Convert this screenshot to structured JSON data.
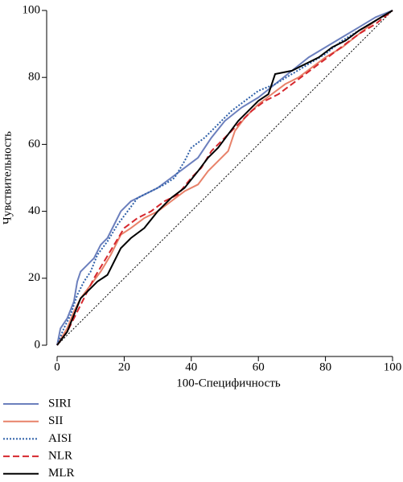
{
  "chart_data": {
    "type": "line",
    "x_label": "100-Специфичность",
    "y_label": "Чувствительность",
    "xlim": [
      0,
      100
    ],
    "ylim": [
      0,
      100
    ],
    "xticks": [
      0,
      20,
      40,
      60,
      80,
      100
    ],
    "yticks": [
      0,
      20,
      40,
      60,
      80,
      100
    ],
    "legend": "bottom-left",
    "series": [
      {
        "name": "SIRI",
        "color": "#6b7fbd",
        "style": "solid",
        "x": [
          0,
          1,
          3,
          5,
          6,
          7,
          9,
          11,
          13,
          15,
          17,
          19,
          22,
          26,
          30,
          34,
          38,
          42,
          46,
          50,
          55,
          60,
          65,
          70,
          75,
          80,
          85,
          90,
          95,
          100
        ],
        "values": [
          0,
          5,
          8,
          13,
          19,
          22,
          24,
          26,
          30,
          32,
          36,
          40,
          43,
          45,
          47,
          50,
          53,
          56,
          62,
          67,
          71,
          74,
          78,
          82,
          86,
          89,
          92,
          95,
          98,
          100
        ]
      },
      {
        "name": "SII",
        "color": "#e8826a",
        "style": "solid",
        "x": [
          0,
          3,
          5,
          7,
          10,
          13,
          16,
          19,
          22,
          26,
          30,
          34,
          38,
          42,
          45,
          48,
          51,
          53,
          56,
          60,
          64,
          68,
          72,
          76,
          80,
          85,
          90,
          95,
          100
        ],
        "values": [
          0,
          5,
          10,
          14,
          18,
          22,
          27,
          33,
          35,
          38,
          40,
          43,
          46,
          48,
          52,
          55,
          58,
          64,
          68,
          72,
          75,
          78,
          80,
          83,
          86,
          89,
          93,
          97,
          100
        ]
      },
      {
        "name": "AISI",
        "color": "#2d5fa8",
        "style": "dotted",
        "x": [
          0,
          2,
          4,
          6,
          8,
          10,
          12,
          15,
          18,
          21,
          24,
          28,
          32,
          35,
          38,
          40,
          44,
          48,
          52,
          56,
          60,
          65,
          70,
          75,
          80,
          85,
          90,
          95,
          100
        ],
        "values": [
          0,
          5,
          9,
          15,
          19,
          22,
          27,
          31,
          36,
          40,
          44,
          46,
          48,
          50,
          55,
          59,
          62,
          66,
          70,
          73,
          76,
          78,
          81,
          84,
          87,
          91,
          94,
          97,
          100
        ]
      },
      {
        "name": "NLR",
        "color": "#d6282e",
        "style": "dashed",
        "x": [
          0,
          3,
          5,
          8,
          11,
          14,
          17,
          20,
          24,
          28,
          32,
          36,
          40,
          43,
          46,
          50,
          54,
          58,
          62,
          66,
          70,
          74,
          78,
          82,
          86,
          90,
          95,
          100
        ],
        "values": [
          0,
          4,
          8,
          14,
          20,
          25,
          30,
          35,
          38,
          40,
          43,
          45,
          50,
          53,
          58,
          62,
          66,
          70,
          73,
          75,
          78,
          81,
          84,
          87,
          90,
          93,
          96,
          100
        ]
      },
      {
        "name": "MLR",
        "color": "#000000",
        "style": "solid",
        "x": [
          0,
          3,
          5,
          7,
          9,
          12,
          15,
          17,
          19,
          22,
          26,
          30,
          34,
          38,
          42,
          45,
          48,
          51,
          54,
          57,
          60,
          63,
          65,
          70,
          74,
          78,
          82,
          86,
          90,
          95,
          100
        ],
        "values": [
          0,
          4,
          9,
          14,
          16,
          19,
          21,
          25,
          29,
          32,
          35,
          40,
          44,
          47,
          52,
          56,
          59,
          63,
          67,
          70,
          73,
          75,
          81,
          82,
          84,
          86,
          89,
          91,
          94,
          97,
          100
        ]
      }
    ]
  }
}
